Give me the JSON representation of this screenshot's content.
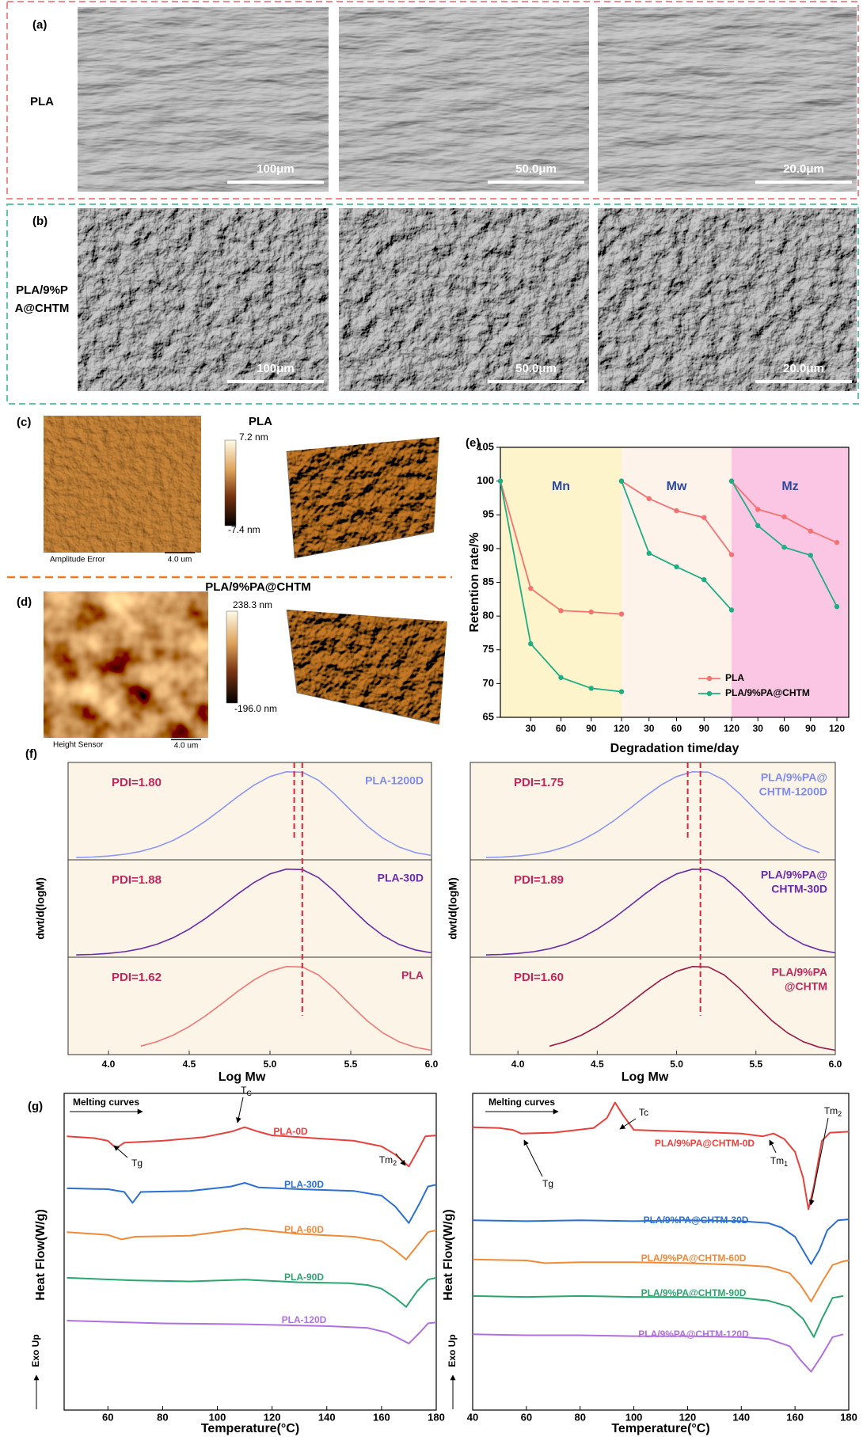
{
  "panels_ab": {
    "a": {
      "label": "(a)",
      "sample": [
        "PLA"
      ],
      "scale_bars": [
        "100μm",
        "50.0μm",
        "20.0μm"
      ]
    },
    "b": {
      "label": "(b)",
      "sample": [
        "PLA/9%P",
        "A@CHTM"
      ],
      "scale_bars": [
        "100μm",
        "50.0μm",
        "20.0μm"
      ]
    }
  },
  "afm": {
    "c": {
      "label": "(c)",
      "title": "PLA",
      "colorbar": [
        "7.2 nm",
        "-7.4 nm"
      ],
      "caption": "Amplitude Error",
      "scale": "4.0 um"
    },
    "d": {
      "label": "(d)",
      "title": "PLA/9%PA@CHTM",
      "colorbar": [
        "238.3 nm",
        "-196.0 nm"
      ],
      "caption": "Height Sensor",
      "scale": "4.0 um"
    }
  },
  "chart_data": [
    {
      "type": "line",
      "label": "(e)",
      "xlabel": "Degradation time/day",
      "ylabel": "Retention rate/%",
      "ylim": [
        65,
        105
      ],
      "yticks": [
        65,
        70,
        75,
        80,
        85,
        90,
        95,
        100,
        105
      ],
      "xlim": [
        0,
        120
      ],
      "xticks": [
        30,
        60,
        90,
        120
      ],
      "group_label_color": "#2c4a9a",
      "legend": [
        {
          "name": "PLA",
          "color": "#f47272"
        },
        {
          "name": "PLA/9%PA@CHTM",
          "color": "#1fae84"
        }
      ],
      "groups": [
        {
          "label": "Mn",
          "shade": "#fdf4cc",
          "x": [
            0,
            30,
            60,
            90,
            120
          ],
          "series": [
            {
              "values": [
                100,
                84.1,
                80.8,
                80.6,
                80.3
              ]
            },
            {
              "values": [
                100,
                75.9,
                70.9,
                69.3,
                68.8
              ]
            }
          ]
        },
        {
          "label": "Mw",
          "shade": "#fdf3ea",
          "x": [
            0,
            30,
            60,
            90,
            120
          ],
          "series": [
            {
              "values": [
                100,
                97.4,
                95.6,
                94.6,
                89.1
              ]
            },
            {
              "values": [
                100,
                89.3,
                87.3,
                85.4,
                80.9
              ]
            }
          ]
        },
        {
          "label": "Mz",
          "shade": "#fbc6e4",
          "x": [
            0,
            30,
            60,
            90,
            120
          ],
          "series": [
            {
              "values": [
                100,
                95.8,
                94.7,
                92.6,
                90.9
              ]
            },
            {
              "values": [
                100,
                93.4,
                90.2,
                89.0,
                81.4
              ]
            }
          ]
        }
      ]
    },
    {
      "type": "line",
      "label": "(f)",
      "xlabel": "Log Mw",
      "ylabel": "dwt/d(logM)",
      "xlim": [
        3.75,
        6.0
      ],
      "ylim": [
        -0.02,
        1.1
      ],
      "xticks": [
        {
          "value": 4,
          "label": "4.0"
        },
        4.5,
        {
          "value": 5,
          "label": "5.0"
        },
        5.5,
        {
          "value": 6,
          "label": "6.0"
        }
      ],
      "peak_lines": [
        5.15,
        5.2
      ],
      "peak_line_color": "#d8243c",
      "pdi_color": "#c1275e",
      "background": "#fcf4e6",
      "x": [
        3.8,
        3.9,
        4.0,
        4.1,
        4.2,
        4.3,
        4.4,
        4.5,
        4.6,
        4.7,
        4.8,
        4.9,
        5.0,
        5.1,
        5.2,
        5.3,
        5.4,
        5.5,
        5.6,
        5.7,
        5.8,
        5.9,
        6.0
      ],
      "subplots": [
        {
          "pdi": "PDI=1.80",
          "name": [
            "PLA-1200D"
          ],
          "color": "#8d98f5",
          "label_color": "#7f8cf0",
          "values": [
            0.006,
            0.012,
            0.024,
            0.044,
            0.077,
            0.129,
            0.203,
            0.302,
            0.424,
            0.563,
            0.707,
            0.838,
            0.938,
            0.993,
            0.988,
            0.896,
            0.737,
            0.55,
            0.372,
            0.229,
            0.127,
            0.064,
            0.03
          ]
        },
        {
          "pdi": "PDI=1.88",
          "name": [
            "PLA-30D"
          ],
          "color": "#6a2ca8",
          "label_color": "#6a2ca8",
          "values": [
            0.006,
            0.012,
            0.024,
            0.044,
            0.077,
            0.129,
            0.203,
            0.302,
            0.424,
            0.563,
            0.707,
            0.838,
            0.938,
            0.993,
            0.988,
            0.896,
            0.737,
            0.55,
            0.372,
            0.229,
            0.127,
            0.064,
            0.03
          ]
        },
        {
          "pdi": "PDI=1.62",
          "name": [
            "PLA"
          ],
          "color": "#f07878",
          "label_color": "#c1275e",
          "values": [
            null,
            null,
            null,
            null,
            0.077,
            0.129,
            0.203,
            0.302,
            0.424,
            0.563,
            0.707,
            0.838,
            0.938,
            0.993,
            0.988,
            0.896,
            0.737,
            0.55,
            0.372,
            0.229,
            0.127,
            0.064,
            0.03
          ]
        }
      ]
    },
    {
      "type": "line",
      "xlabel": "Log Mw",
      "ylabel": "dwt/d(logM)",
      "xlim": [
        3.7,
        6.0
      ],
      "ylim": [
        -0.02,
        1.1
      ],
      "xticks": [
        {
          "value": 4,
          "label": "4.0"
        },
        4.5,
        {
          "value": 5,
          "label": "5.0"
        },
        5.5,
        {
          "value": 6,
          "label": "6.0"
        }
      ],
      "peak_lines": [
        5.07,
        5.15
      ],
      "peak_line_color": "#d8243c",
      "pdi_color": "#c1275e",
      "background": "#fcf4e6",
      "x": [
        3.8,
        3.9,
        4.0,
        4.1,
        4.2,
        4.3,
        4.4,
        4.5,
        4.6,
        4.7,
        4.8,
        4.9,
        5.0,
        5.1,
        5.2,
        5.3,
        5.4,
        5.5,
        5.6,
        5.7,
        5.8,
        5.9,
        6.0
      ],
      "subplots": [
        {
          "pdi": "PDI=1.75",
          "name": [
            "PLA/9%PA@",
            "CHTM-1200D"
          ],
          "color": "#8d98f5",
          "label_color": "#7f8cf0",
          "values": [
            0.006,
            0.012,
            0.024,
            0.044,
            0.077,
            0.129,
            0.203,
            0.302,
            0.424,
            0.563,
            0.707,
            0.838,
            0.938,
            0.993,
            0.988,
            0.896,
            0.737,
            0.55,
            0.372,
            0.229,
            0.127,
            0.064,
            null
          ]
        },
        {
          "pdi": "PDI=1.89",
          "name": [
            "PLA/9%PA@",
            "CHTM-30D"
          ],
          "color": "#6a2ca8",
          "label_color": "#6a2ca8",
          "values": [
            0.006,
            0.012,
            0.024,
            0.044,
            0.077,
            0.129,
            0.203,
            0.302,
            0.424,
            0.563,
            0.707,
            0.838,
            0.938,
            0.993,
            0.988,
            0.896,
            0.737,
            0.55,
            0.372,
            0.229,
            0.127,
            0.064,
            0.03
          ]
        },
        {
          "pdi": "PDI=1.60",
          "name": [
            "PLA/9%PA",
            "@CHTM"
          ],
          "color": "#9b1a4a",
          "label_color": "#c1275e",
          "values": [
            null,
            null,
            null,
            null,
            0.077,
            0.129,
            0.203,
            0.302,
            0.424,
            0.563,
            0.707,
            0.838,
            0.938,
            0.993,
            0.988,
            0.896,
            0.737,
            0.55,
            0.372,
            0.229,
            0.127,
            0.064,
            0.03
          ]
        }
      ]
    },
    {
      "type": "line",
      "label": "(g)",
      "note": "Melting curves",
      "exo": "Exo Up",
      "xlabel": "Temperature(°C)",
      "ylabel": "Heat Flow(W/g)",
      "xlim": [
        44,
        180
      ],
      "ylim": [
        0,
        347
      ],
      "xticks": [
        60,
        80,
        100,
        120,
        140,
        160,
        180
      ],
      "series": [
        {
          "name": "PLA-0D",
          "color": "#e8413c",
          "x": [
            45,
            55,
            60,
            63,
            66,
            80,
            95,
            105,
            110,
            115,
            120,
            140,
            150,
            160,
            165,
            170,
            173,
            176,
            180
          ],
          "values": [
            300,
            298,
            295,
            287,
            293,
            295,
            299,
            305,
            310,
            305,
            301,
            297,
            295,
            289,
            280,
            267,
            283,
            300,
            301
          ]
        },
        {
          "name": "PLA-30D",
          "color": "#2a6fd3",
          "x": [
            45,
            60,
            66,
            69,
            72,
            90,
            105,
            110,
            115,
            130,
            150,
            160,
            165,
            170,
            174,
            177,
            180
          ],
          "values": [
            243,
            242,
            239,
            227,
            239,
            240,
            245,
            249,
            244,
            242,
            240,
            235,
            223,
            205,
            227,
            245,
            247
          ]
        },
        {
          "name": "PLA-60D",
          "color": "#f08a38",
          "x": [
            45,
            60,
            65,
            70,
            90,
            110,
            130,
            150,
            160,
            165,
            169,
            173,
            177,
            180
          ],
          "values": [
            195,
            192,
            187,
            190,
            191,
            199,
            193,
            190,
            185,
            175,
            165,
            180,
            195,
            197
          ]
        },
        {
          "name": "PLA-90D",
          "color": "#2aa66f",
          "x": [
            45,
            70,
            90,
            110,
            130,
            148,
            155,
            160,
            165,
            169,
            173,
            177,
            180
          ],
          "values": [
            145,
            142,
            141,
            143,
            140,
            139,
            137,
            133,
            123,
            113,
            130,
            143,
            145
          ]
        },
        {
          "name": "PLA-120D",
          "color": "#b070e0",
          "x": [
            45,
            80,
            110,
            140,
            155,
            162,
            166,
            170,
            174,
            177,
            180
          ],
          "values": [
            98,
            95,
            94,
            92,
            90,
            85,
            79,
            73,
            85,
            95,
            96
          ]
        }
      ],
      "annotations": [
        {
          "text": "Tg"
        },
        {
          "text": "T",
          "sub": "C"
        },
        {
          "text": "Tm",
          "sub": "2"
        }
      ]
    },
    {
      "type": "line",
      "note": "Melting curves",
      "exo": "Exo Up",
      "xlabel": "Temperature(°C)",
      "ylabel": "Heat Flow(W/g)",
      "xlim": [
        40,
        180
      ],
      "ylim": [
        0,
        347
      ],
      "xticks": [
        40,
        60,
        80,
        100,
        120,
        140,
        160,
        180
      ],
      "series": [
        {
          "name": "PLA/9%PA@CHTM-0D",
          "color": "#e8413c",
          "x": [
            40,
            50,
            55,
            58,
            70,
            85,
            90,
            93,
            96,
            100,
            120,
            140,
            148,
            152,
            156,
            160,
            163,
            165,
            167,
            170,
            173,
            180
          ],
          "values": [
            310,
            309,
            307,
            303,
            304,
            309,
            320,
            337,
            323,
            307,
            305,
            303,
            300,
            303,
            297,
            283,
            255,
            220,
            245,
            295,
            304,
            305
          ]
        },
        {
          "name": "PLA/9%PA@CHTM-30D",
          "color": "#2a6fd3",
          "x": [
            40,
            60,
            80,
            100,
            120,
            140,
            150,
            155,
            160,
            163,
            166,
            169,
            172,
            176,
            180
          ],
          "values": [
            208,
            207,
            208,
            207,
            208,
            207,
            205,
            200,
            190,
            175,
            160,
            175,
            197,
            208,
            209
          ]
        },
        {
          "name": "PLA/9%PA@CHTM-60D",
          "color": "#f08a38",
          "x": [
            40,
            60,
            67,
            80,
            100,
            120,
            140,
            150,
            158,
            162,
            166,
            170,
            174,
            178,
            180
          ],
          "values": [
            165,
            164,
            161,
            162,
            162,
            161,
            159,
            157,
            150,
            137,
            119,
            140,
            159,
            163,
            164
          ]
        },
        {
          "name": "PLA/9%PA@CHTM-90D",
          "color": "#2aa66f",
          "x": [
            40,
            60,
            80,
            100,
            120,
            140,
            150,
            158,
            163,
            167,
            170,
            174,
            178
          ],
          "values": [
            125,
            124,
            125,
            124,
            124,
            123,
            120,
            113,
            100,
            80,
            100,
            123,
            125
          ]
        },
        {
          "name": "PLA/9%PA@CHTM-120D",
          "color": "#b070e0",
          "x": [
            40,
            60,
            80,
            100,
            120,
            140,
            150,
            158,
            162,
            166,
            170,
            174,
            178
          ],
          "values": [
            83,
            82,
            82,
            81,
            81,
            80,
            78,
            70,
            55,
            42,
            60,
            80,
            83
          ]
        }
      ],
      "annotations": [
        {
          "text": "Tc"
        },
        {
          "text": "Tg"
        },
        {
          "text": "Tm",
          "sub": "1"
        },
        {
          "text": "Tm",
          "sub": "2"
        }
      ]
    }
  ]
}
